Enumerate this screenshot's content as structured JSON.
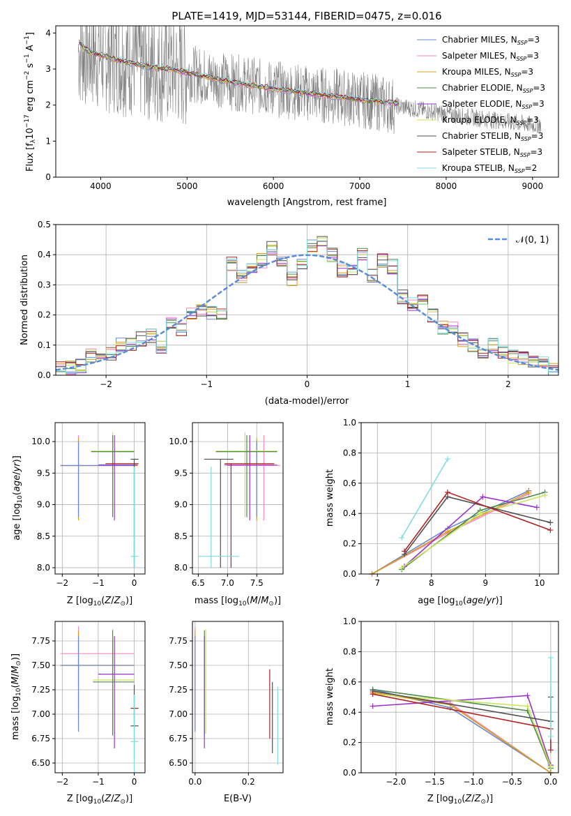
{
  "figure": {
    "title": "PLATE=1419, MJD=53144, FIBERID=0475, z=0.016"
  },
  "colors": {
    "series": [
      "#6a89cc",
      "#ff85c1",
      "#d4a017",
      "#4e8a4e",
      "#9932cc",
      "#c8e65a",
      "#505050",
      "#b22222",
      "#7fdde0"
    ],
    "data_spectrum": "#808080",
    "gaussian": "#5b8bd9",
    "orange_fit": "#e8803a"
  },
  "legend": {
    "series": [
      {
        "main": "Chabrier MILES, N",
        "sub": "SSP",
        "tail": "=3"
      },
      {
        "main": "Salpeter MILES, N",
        "sub": "SSP",
        "tail": "=3"
      },
      {
        "main": "Kroupa MILES, N",
        "sub": "SSP",
        "tail": "=3"
      },
      {
        "main": "Chabrier ELODIE, N",
        "sub": "SSP",
        "tail": "=3"
      },
      {
        "main": "Salpeter ELODIE, N",
        "sub": "SSP",
        "tail": "=3"
      },
      {
        "main": "Kroupa ELODIE, N",
        "sub": "SSP",
        "tail": "=3"
      },
      {
        "main": "Chabrier STELIB, N",
        "sub": "SSP",
        "tail": "=3"
      },
      {
        "main": "Salpeter STELIB, N",
        "sub": "SSP",
        "tail": "=3"
      },
      {
        "main": "Kroupa STELIB, N",
        "sub": "SSP",
        "tail": "=2"
      }
    ],
    "gaussian_label": "𝒩(0, 1)"
  },
  "chart_data": [
    {
      "id": "spectrum",
      "type": "line",
      "xlabel": "wavelength [Angstrom, rest frame]",
      "ylabel": "Flux [fλ 10⁻¹⁷ erg cm⁻² s⁻¹ A⁻¹]",
      "xlim": [
        3480,
        9300
      ],
      "ylim": [
        0,
        4.2
      ],
      "xticks": [
        "4000",
        "5000",
        "6000",
        "7000",
        "8000",
        "9000"
      ],
      "yticks": [
        "0",
        "1",
        "2",
        "3",
        "4"
      ],
      "model_continuum": {
        "x": [
          3750,
          3800,
          3900,
          4000,
          4200,
          4400,
          4600,
          4800,
          5000,
          5500,
          6000,
          6500,
          7000,
          7400
        ],
        "y": [
          3.75,
          3.6,
          3.45,
          3.4,
          3.25,
          3.15,
          3.05,
          3.0,
          2.9,
          2.65,
          2.45,
          2.3,
          2.15,
          2.05
        ]
      },
      "data_continuum": {
        "x": [
          3750,
          4000,
          4500,
          5000,
          5500,
          6000,
          6500,
          7000,
          7500,
          8000,
          8500,
          9000
        ],
        "y": [
          3.5,
          3.4,
          3.15,
          2.9,
          2.65,
          2.45,
          2.3,
          2.15,
          1.95,
          1.75,
          1.6,
          1.45
        ]
      }
    },
    {
      "id": "residuals",
      "type": "line",
      "xlabel": "(data-model)/error",
      "ylabel": "Normed distribution",
      "xlim": [
        -2.5,
        2.5
      ],
      "ylim": [
        0,
        0.5
      ],
      "xticks": [
        "−2",
        "−1",
        "0",
        "1",
        "2"
      ],
      "yticks": [
        "0.0",
        "0.1",
        "0.2",
        "0.3",
        "0.4",
        "0.5"
      ],
      "hist": {
        "bins": [
          -2.5,
          -2.4,
          -2.3,
          -2.2,
          -2.1,
          -2.0,
          -1.9,
          -1.8,
          -1.7,
          -1.6,
          -1.5,
          -1.4,
          -1.3,
          -1.2,
          -1.1,
          -1.0,
          -0.9,
          -0.8,
          -0.7,
          -0.6,
          -0.5,
          -0.4,
          -0.3,
          -0.2,
          -0.1,
          0.0,
          0.1,
          0.2,
          0.3,
          0.4,
          0.5,
          0.6,
          0.7,
          0.8,
          0.9,
          1.0,
          1.1,
          1.2,
          1.3,
          1.4,
          1.5,
          1.6,
          1.7,
          1.8,
          1.9,
          2.0,
          2.1,
          2.2,
          2.3,
          2.4
        ],
        "values": [
          0.02,
          0.025,
          0.03,
          0.065,
          0.05,
          0.07,
          0.1,
          0.1,
          0.12,
          0.13,
          0.09,
          0.17,
          0.15,
          0.2,
          0.22,
          0.21,
          0.2,
          0.37,
          0.33,
          0.36,
          0.38,
          0.42,
          0.37,
          0.32,
          0.37,
          0.43,
          0.44,
          0.4,
          0.35,
          0.35,
          0.4,
          0.33,
          0.38,
          0.36,
          0.26,
          0.24,
          0.26,
          0.2,
          0.16,
          0.16,
          0.12,
          0.1,
          0.08,
          0.1,
          0.08,
          0.06,
          0.06,
          0.05,
          0.04,
          0.02
        ]
      }
    },
    {
      "id": "age-vs-Z",
      "type": "scatter",
      "xlabel": "Z [log₁₀(Z/Z⊙)]",
      "ylabel": "age  [log₁₀(age/yr)]",
      "xlim": [
        -2.2,
        0.3
      ],
      "ylim": [
        7.9,
        10.3
      ],
      "xticks": [
        "−2",
        "−1",
        "0"
      ],
      "yticks": [
        "8.0",
        "8.5",
        "9.0",
        "9.5",
        "10.0"
      ]
    },
    {
      "id": "age-vs-mass",
      "type": "scatter",
      "xlabel": "mass [log₁₀(M/M⊙)]",
      "ylabel": "",
      "xlim": [
        6.4,
        7.95
      ],
      "ylim": [
        7.9,
        10.3
      ],
      "xticks": [
        "6.5",
        "7.0",
        "7.5"
      ],
      "yticks": [
        "8.0",
        "8.5",
        "9.0",
        "9.5",
        "10.0"
      ]
    },
    {
      "id": "massweight-vs-age",
      "type": "line",
      "xlabel": "age  [log₁₀(age/yr)]",
      "ylabel": "mass weight",
      "xlim": [
        6.7,
        10.35
      ],
      "ylim": [
        0,
        1
      ],
      "xticks": [
        "7",
        "8",
        "9",
        "10"
      ],
      "yticks": [
        "0.0",
        "0.2",
        "0.4",
        "0.6",
        "0.8",
        "1.0"
      ],
      "series": [
        {
          "x": [
            6.9,
            8.3,
            9.8
          ],
          "y": [
            0.0,
            0.3,
            0.55
          ]
        },
        {
          "x": [
            6.9,
            8.3,
            9.8
          ],
          "y": [
            0.0,
            0.27,
            0.53
          ]
        },
        {
          "x": [
            6.9,
            8.3,
            9.8
          ],
          "y": [
            0.0,
            0.28,
            0.54
          ]
        },
        {
          "x": [
            7.45,
            8.9,
            10.1
          ],
          "y": [
            0.03,
            0.42,
            0.54
          ]
        },
        {
          "x": [
            7.5,
            8.95,
            9.95
          ],
          "y": [
            0.05,
            0.51,
            0.44
          ]
        },
        {
          "x": [
            7.45,
            8.9,
            10.1
          ],
          "y": [
            0.04,
            0.4,
            0.52
          ]
        },
        {
          "x": [
            7.5,
            8.3,
            10.2
          ],
          "y": [
            0.13,
            0.51,
            0.34
          ]
        },
        {
          "x": [
            7.5,
            8.3,
            10.2
          ],
          "y": [
            0.15,
            0.54,
            0.29
          ]
        },
        {
          "x": [
            7.45,
            8.3
          ],
          "y": [
            0.24,
            0.76
          ]
        }
      ]
    },
    {
      "id": "mass-vs-Z",
      "type": "scatter",
      "xlabel": "Z [log₁₀(Z/Z⊙)]",
      "ylabel": "mass [log₁₀(M/M⊙)]",
      "xlim": [
        -2.2,
        0.3
      ],
      "ylim": [
        6.4,
        7.95
      ],
      "xticks": [
        "−2",
        "−1",
        "0"
      ],
      "yticks": [
        "6.50",
        "6.75",
        "7.00",
        "7.25",
        "7.50",
        "7.75"
      ]
    },
    {
      "id": "mass-vs-EBV",
      "type": "scatter",
      "xlabel": "E(B-V)",
      "ylabel": "",
      "xlim": [
        -0.01,
        0.33
      ],
      "ylim": [
        6.4,
        7.95
      ],
      "xticks": [
        "0.0",
        "0.2"
      ],
      "yticks": [
        "6.50",
        "6.75",
        "7.00",
        "7.25",
        "7.50",
        "7.75"
      ]
    },
    {
      "id": "massweight-vs-Z",
      "type": "line",
      "xlabel": "Z [log₁₀(Z/Z⊙)]",
      "ylabel": "mass weight",
      "xlim": [
        -2.45,
        0.1
      ],
      "ylim": [
        0,
        1
      ],
      "xticks": [
        "−2.0",
        "−1.5",
        "−1.0",
        "−0.5",
        "0.0"
      ],
      "yticks": [
        "0.0",
        "0.2",
        "0.4",
        "0.6",
        "0.8",
        "1.0"
      ],
      "series": [
        {
          "x": [
            -2.3,
            -1.3,
            0.0
          ],
          "y": [
            0.55,
            0.43,
            0.0
          ]
        },
        {
          "x": [
            -2.3,
            -1.3,
            0.0
          ],
          "y": [
            0.53,
            0.46,
            0.0
          ]
        },
        {
          "x": [
            -2.3,
            -1.3,
            0.0
          ],
          "y": [
            0.53,
            0.45,
            0.0
          ]
        },
        {
          "x": [
            -2.3,
            -0.3,
            0.0
          ],
          "y": [
            0.55,
            0.41,
            0.03
          ]
        },
        {
          "x": [
            -2.3,
            -0.3,
            0.0
          ],
          "y": [
            0.44,
            0.51,
            0.05
          ]
        },
        {
          "x": [
            -2.3,
            -0.3,
            0.0
          ],
          "y": [
            0.52,
            0.44,
            0.04
          ]
        },
        {
          "x": [
            -2.3,
            0.0,
            0.0
          ],
          "y": [
            0.54,
            0.34,
            0.5
          ]
        },
        {
          "x": [
            -2.3,
            0.0,
            0.0
          ],
          "y": [
            0.52,
            0.29,
            0.15
          ]
        },
        {
          "x": [
            0.0,
            0.0
          ],
          "y": [
            0.76,
            0.24
          ]
        }
      ]
    }
  ]
}
